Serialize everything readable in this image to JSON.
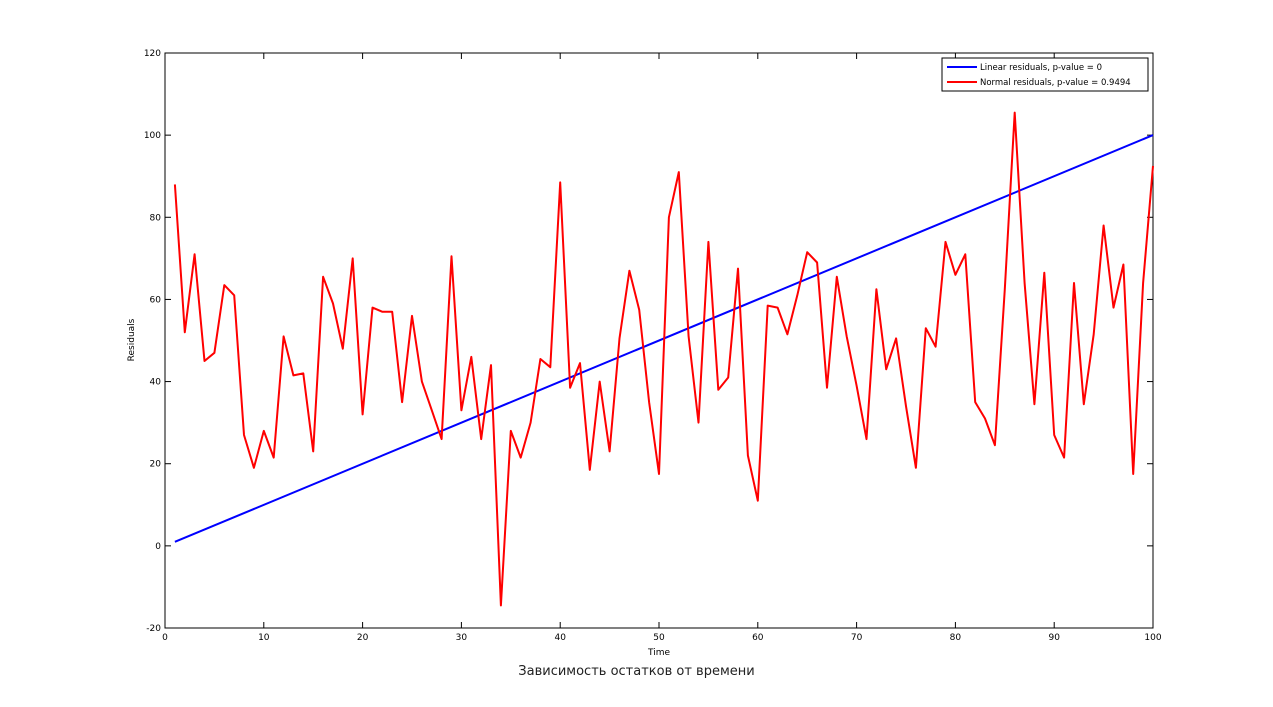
{
  "caption": "Зависимость остатков от времени",
  "chart_data": {
    "type": "line",
    "xlabel": "Time",
    "ylabel": "Residuals",
    "xlim": [
      0,
      100
    ],
    "ylim": [
      -20,
      120
    ],
    "xticks": [
      0,
      10,
      20,
      30,
      40,
      50,
      60,
      70,
      80,
      90,
      100
    ],
    "yticks": [
      -20,
      0,
      20,
      40,
      60,
      80,
      100,
      120
    ],
    "grid": false,
    "legend_position": "top-right",
    "series": [
      {
        "name": "Linear residuals, p-value = 0",
        "color": "#0000ff",
        "x": [
          1,
          100
        ],
        "y": [
          1,
          100
        ]
      },
      {
        "name": "Normal residuals, p-value = 0.9494",
        "color": "#ff0000",
        "x": [
          1,
          2,
          3,
          4,
          5,
          6,
          7,
          8,
          9,
          10,
          11,
          12,
          13,
          14,
          15,
          16,
          17,
          18,
          19,
          20,
          21,
          22,
          23,
          24,
          25,
          26,
          27,
          28,
          29,
          30,
          31,
          32,
          33,
          34,
          35,
          36,
          37,
          38,
          39,
          40,
          41,
          42,
          43,
          44,
          45,
          46,
          47,
          48,
          49,
          50,
          51,
          52,
          53,
          54,
          55,
          56,
          57,
          58,
          59,
          60,
          61,
          62,
          63,
          64,
          65,
          66,
          67,
          68,
          69,
          70,
          71,
          72,
          73,
          74,
          75,
          76,
          77,
          78,
          79,
          80,
          81,
          82,
          83,
          84,
          85,
          86,
          87,
          88,
          89,
          90,
          91,
          92,
          93,
          94,
          95,
          96,
          97,
          98,
          99,
          100
        ],
        "y": [
          88,
          52,
          71,
          45,
          47,
          63.5,
          61,
          27,
          19,
          28,
          21.5,
          51,
          41.5,
          42,
          23,
          65.5,
          59,
          48,
          70,
          32,
          58,
          57,
          57,
          35,
          56,
          40,
          33,
          26,
          70.5,
          33,
          46,
          26,
          44,
          -14.5,
          28,
          21.5,
          30,
          45.5,
          43.5,
          88.5,
          38.5,
          44.5,
          18.5,
          40,
          23,
          50.5,
          67,
          57.5,
          35,
          17.5,
          80,
          91,
          51,
          30,
          74,
          38,
          41,
          67.5,
          22,
          11,
          58.5,
          58,
          51.5,
          61,
          71.5,
          69,
          38.5,
          65.5,
          51,
          39,
          26,
          62.5,
          43,
          50.5,
          34,
          19,
          53,
          48.5,
          74,
          66,
          71,
          35,
          31,
          24.5,
          62.5,
          105.5,
          64,
          34.5,
          66.5,
          27,
          21.5,
          64,
          34.5,
          51.5,
          78,
          58,
          68.5,
          17.5,
          64,
          92.5
        ]
      }
    ]
  }
}
